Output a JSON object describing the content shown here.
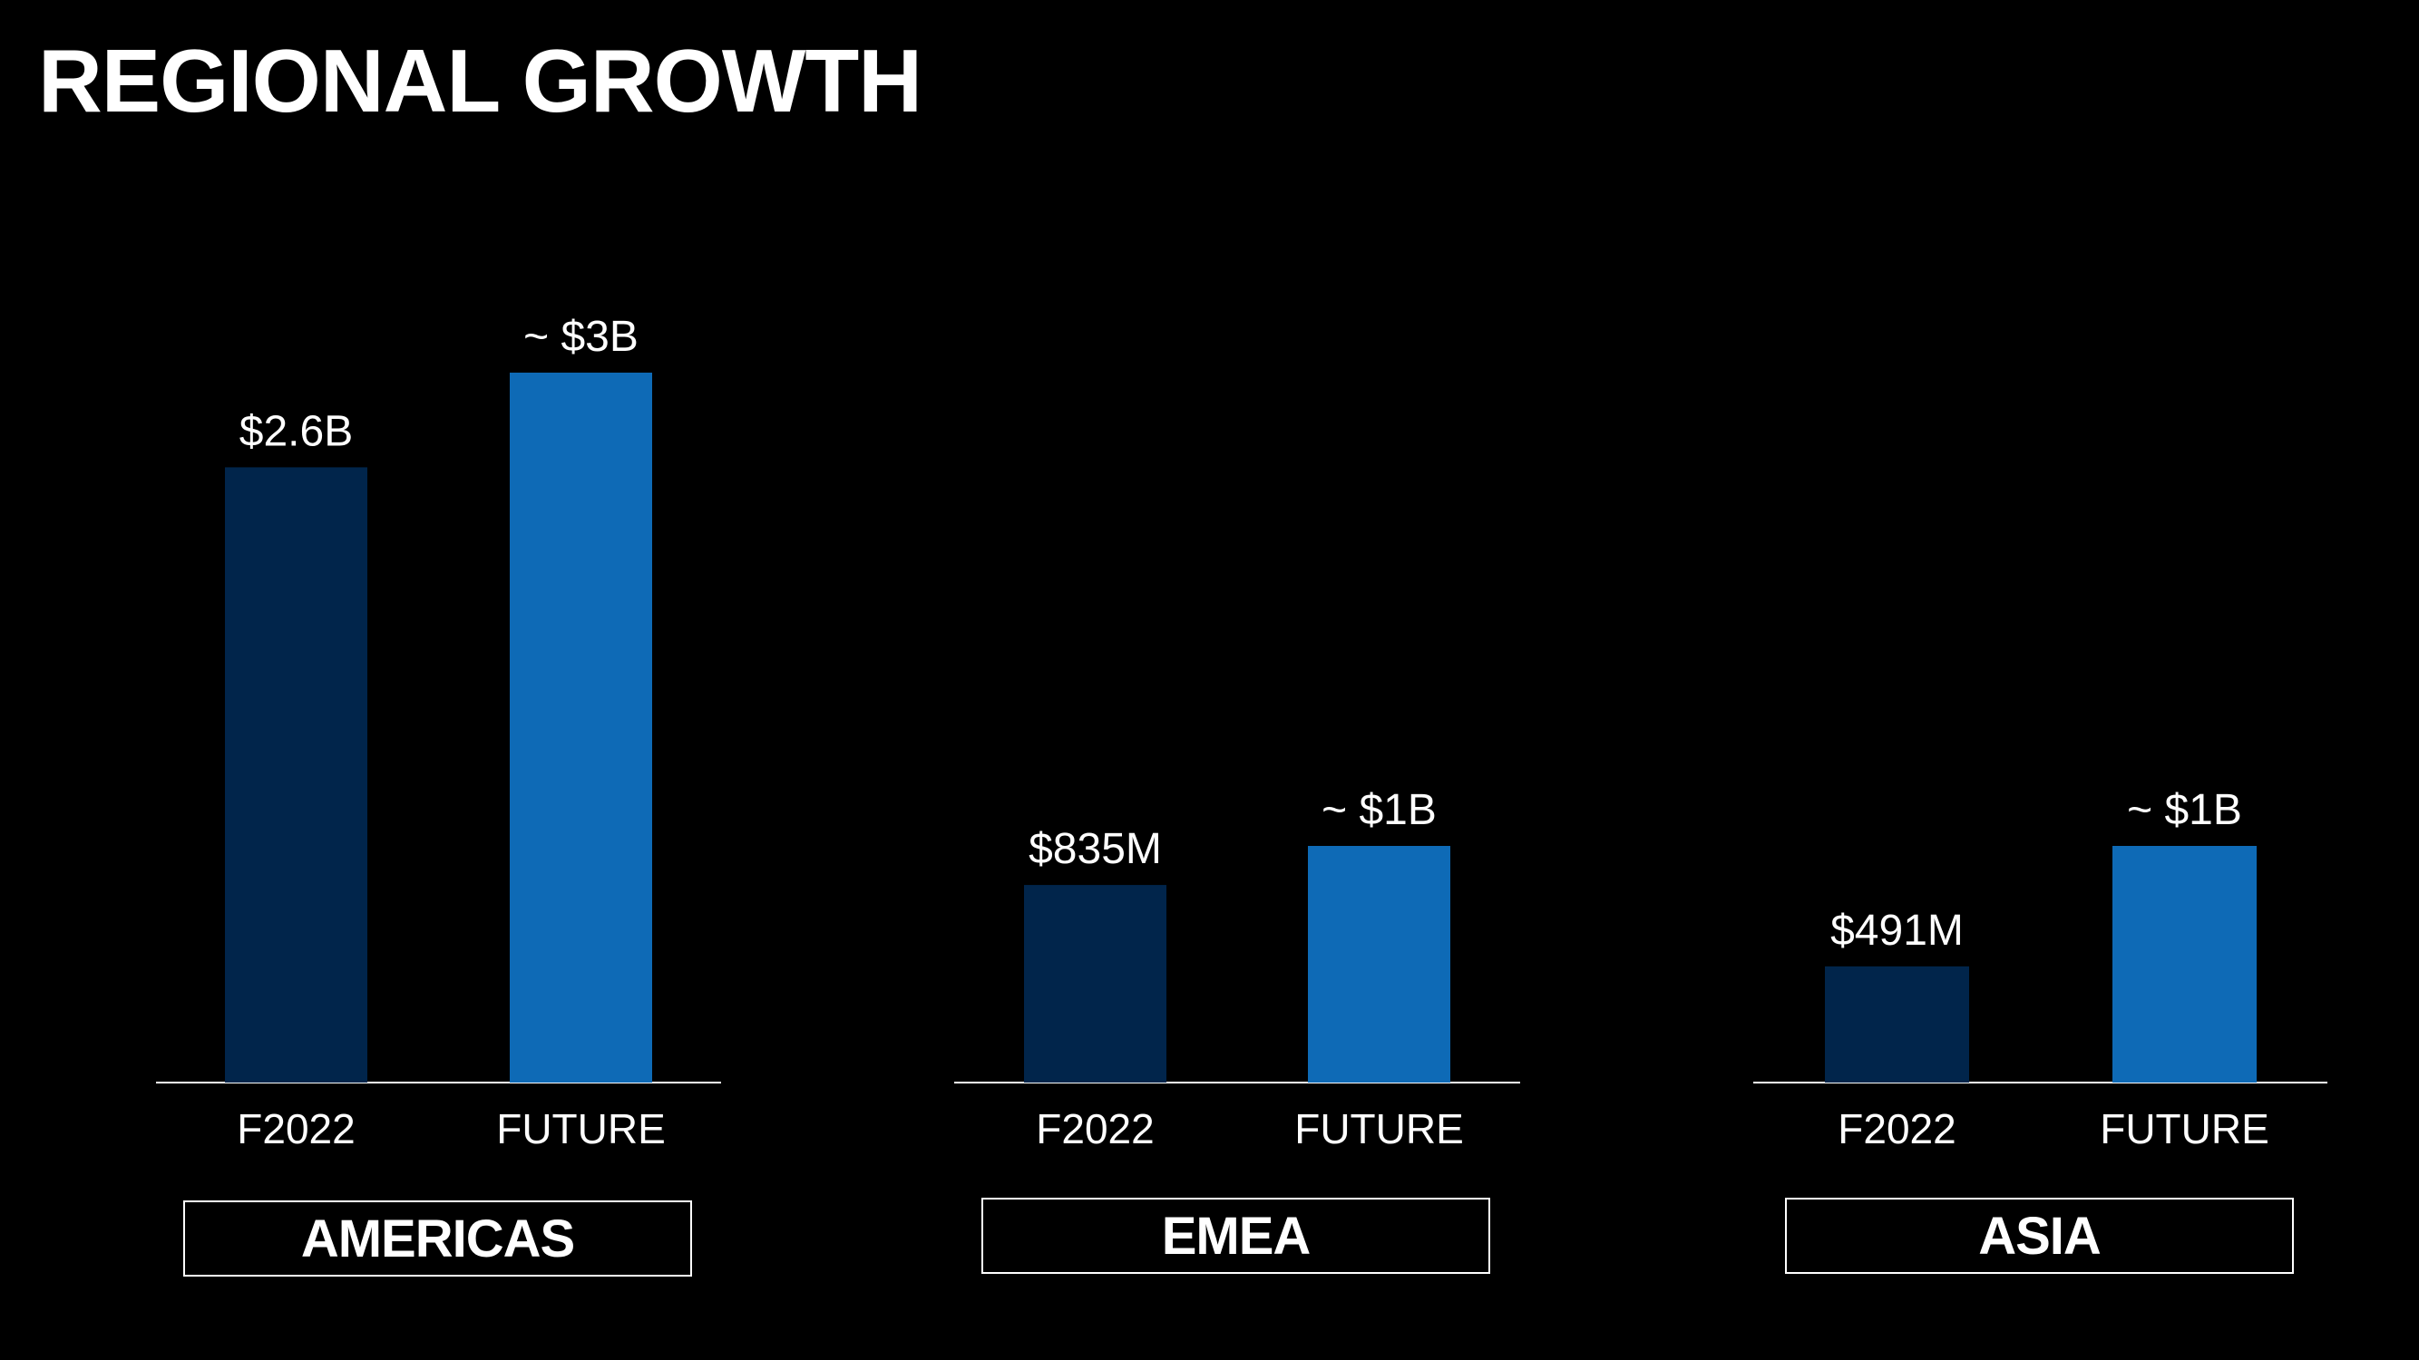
{
  "page": {
    "title": "REGIONAL GROWTH"
  },
  "colors": {
    "background": "#000000",
    "text": "#ffffff",
    "f2022_bar": "#01254b",
    "future_bar": "#0e6ab6",
    "baseline": "#ffffff"
  },
  "chart_data": [
    {
      "type": "bar",
      "region": "AMERICAS",
      "categories": [
        "F2022",
        "FUTURE"
      ],
      "values": [
        2.6,
        3.0
      ],
      "unit": "$B",
      "data_labels": [
        "$2.6B",
        "~ $3B"
      ]
    },
    {
      "type": "bar",
      "region": "EMEA",
      "categories": [
        "F2022",
        "FUTURE"
      ],
      "values": [
        0.835,
        1.0
      ],
      "unit": "$B",
      "data_labels": [
        "$835M",
        "~ $1B"
      ]
    },
    {
      "type": "bar",
      "region": "ASIA",
      "categories": [
        "F2022",
        "FUTURE"
      ],
      "values": [
        0.491,
        1.0
      ],
      "unit": "$B",
      "data_labels": [
        "$491M",
        "~ $1B"
      ]
    }
  ]
}
